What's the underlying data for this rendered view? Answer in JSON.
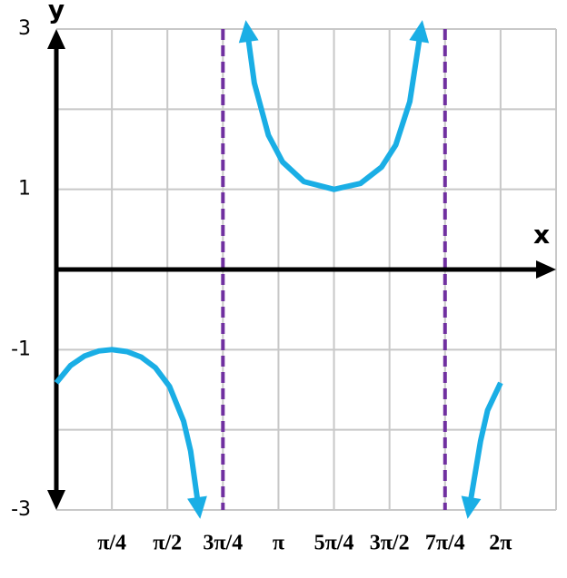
{
  "chart_data": {
    "type": "line",
    "x_label": "x",
    "y_label": "y",
    "xlim": [
      0,
      7.0686
    ],
    "ylim": [
      -3,
      3
    ],
    "xticks": [
      {
        "value": 0.7854,
        "label": "π/4"
      },
      {
        "value": 1.5708,
        "label": "π/2"
      },
      {
        "value": 2.3562,
        "label": "3π/4"
      },
      {
        "value": 3.1416,
        "label": "π"
      },
      {
        "value": 3.927,
        "label": "5π/4"
      },
      {
        "value": 4.7124,
        "label": "3π/2"
      },
      {
        "value": 5.4978,
        "label": "7π/4"
      },
      {
        "value": 6.2832,
        "label": "2π"
      }
    ],
    "yticks": [
      -3,
      -1,
      1,
      3
    ],
    "xgrid": [
      0.7854,
      1.5708,
      2.3562,
      3.1416,
      3.927,
      4.7124,
      5.4978,
      6.2832,
      7.0686
    ],
    "ygrid": [
      -3,
      -2,
      -1,
      1,
      2,
      3
    ],
    "grid": true,
    "asymptotes_x": [
      2.3562,
      5.4978
    ],
    "asymptote_color": "#7030a0",
    "series": [
      {
        "color": "#1aaee5",
        "x": [
          0,
          0.2,
          0.4,
          0.6,
          0.785,
          1.0,
          1.2,
          1.4,
          1.6,
          1.8,
          1.9,
          2.0164,
          2.3562,
          2.6962,
          2.8,
          3.0,
          3.2,
          3.5,
          3.927,
          4.3,
          4.6,
          4.8,
          5.0,
          5.158,
          5.4978,
          5.8376,
          6.0,
          6.1,
          6.2832
        ],
        "values": [
          -1.414,
          -1.199,
          -1.079,
          -1.017,
          -1,
          -1.024,
          -1.092,
          -1.224,
          -1.458,
          -1.894,
          -2.265,
          -3,
          null,
          3,
          2.326,
          1.676,
          1.341,
          1.097,
          1,
          1.073,
          1.278,
          1.552,
          2.094,
          3,
          null,
          -3,
          -2.139,
          -1.757,
          -1.414
        ]
      }
    ]
  }
}
